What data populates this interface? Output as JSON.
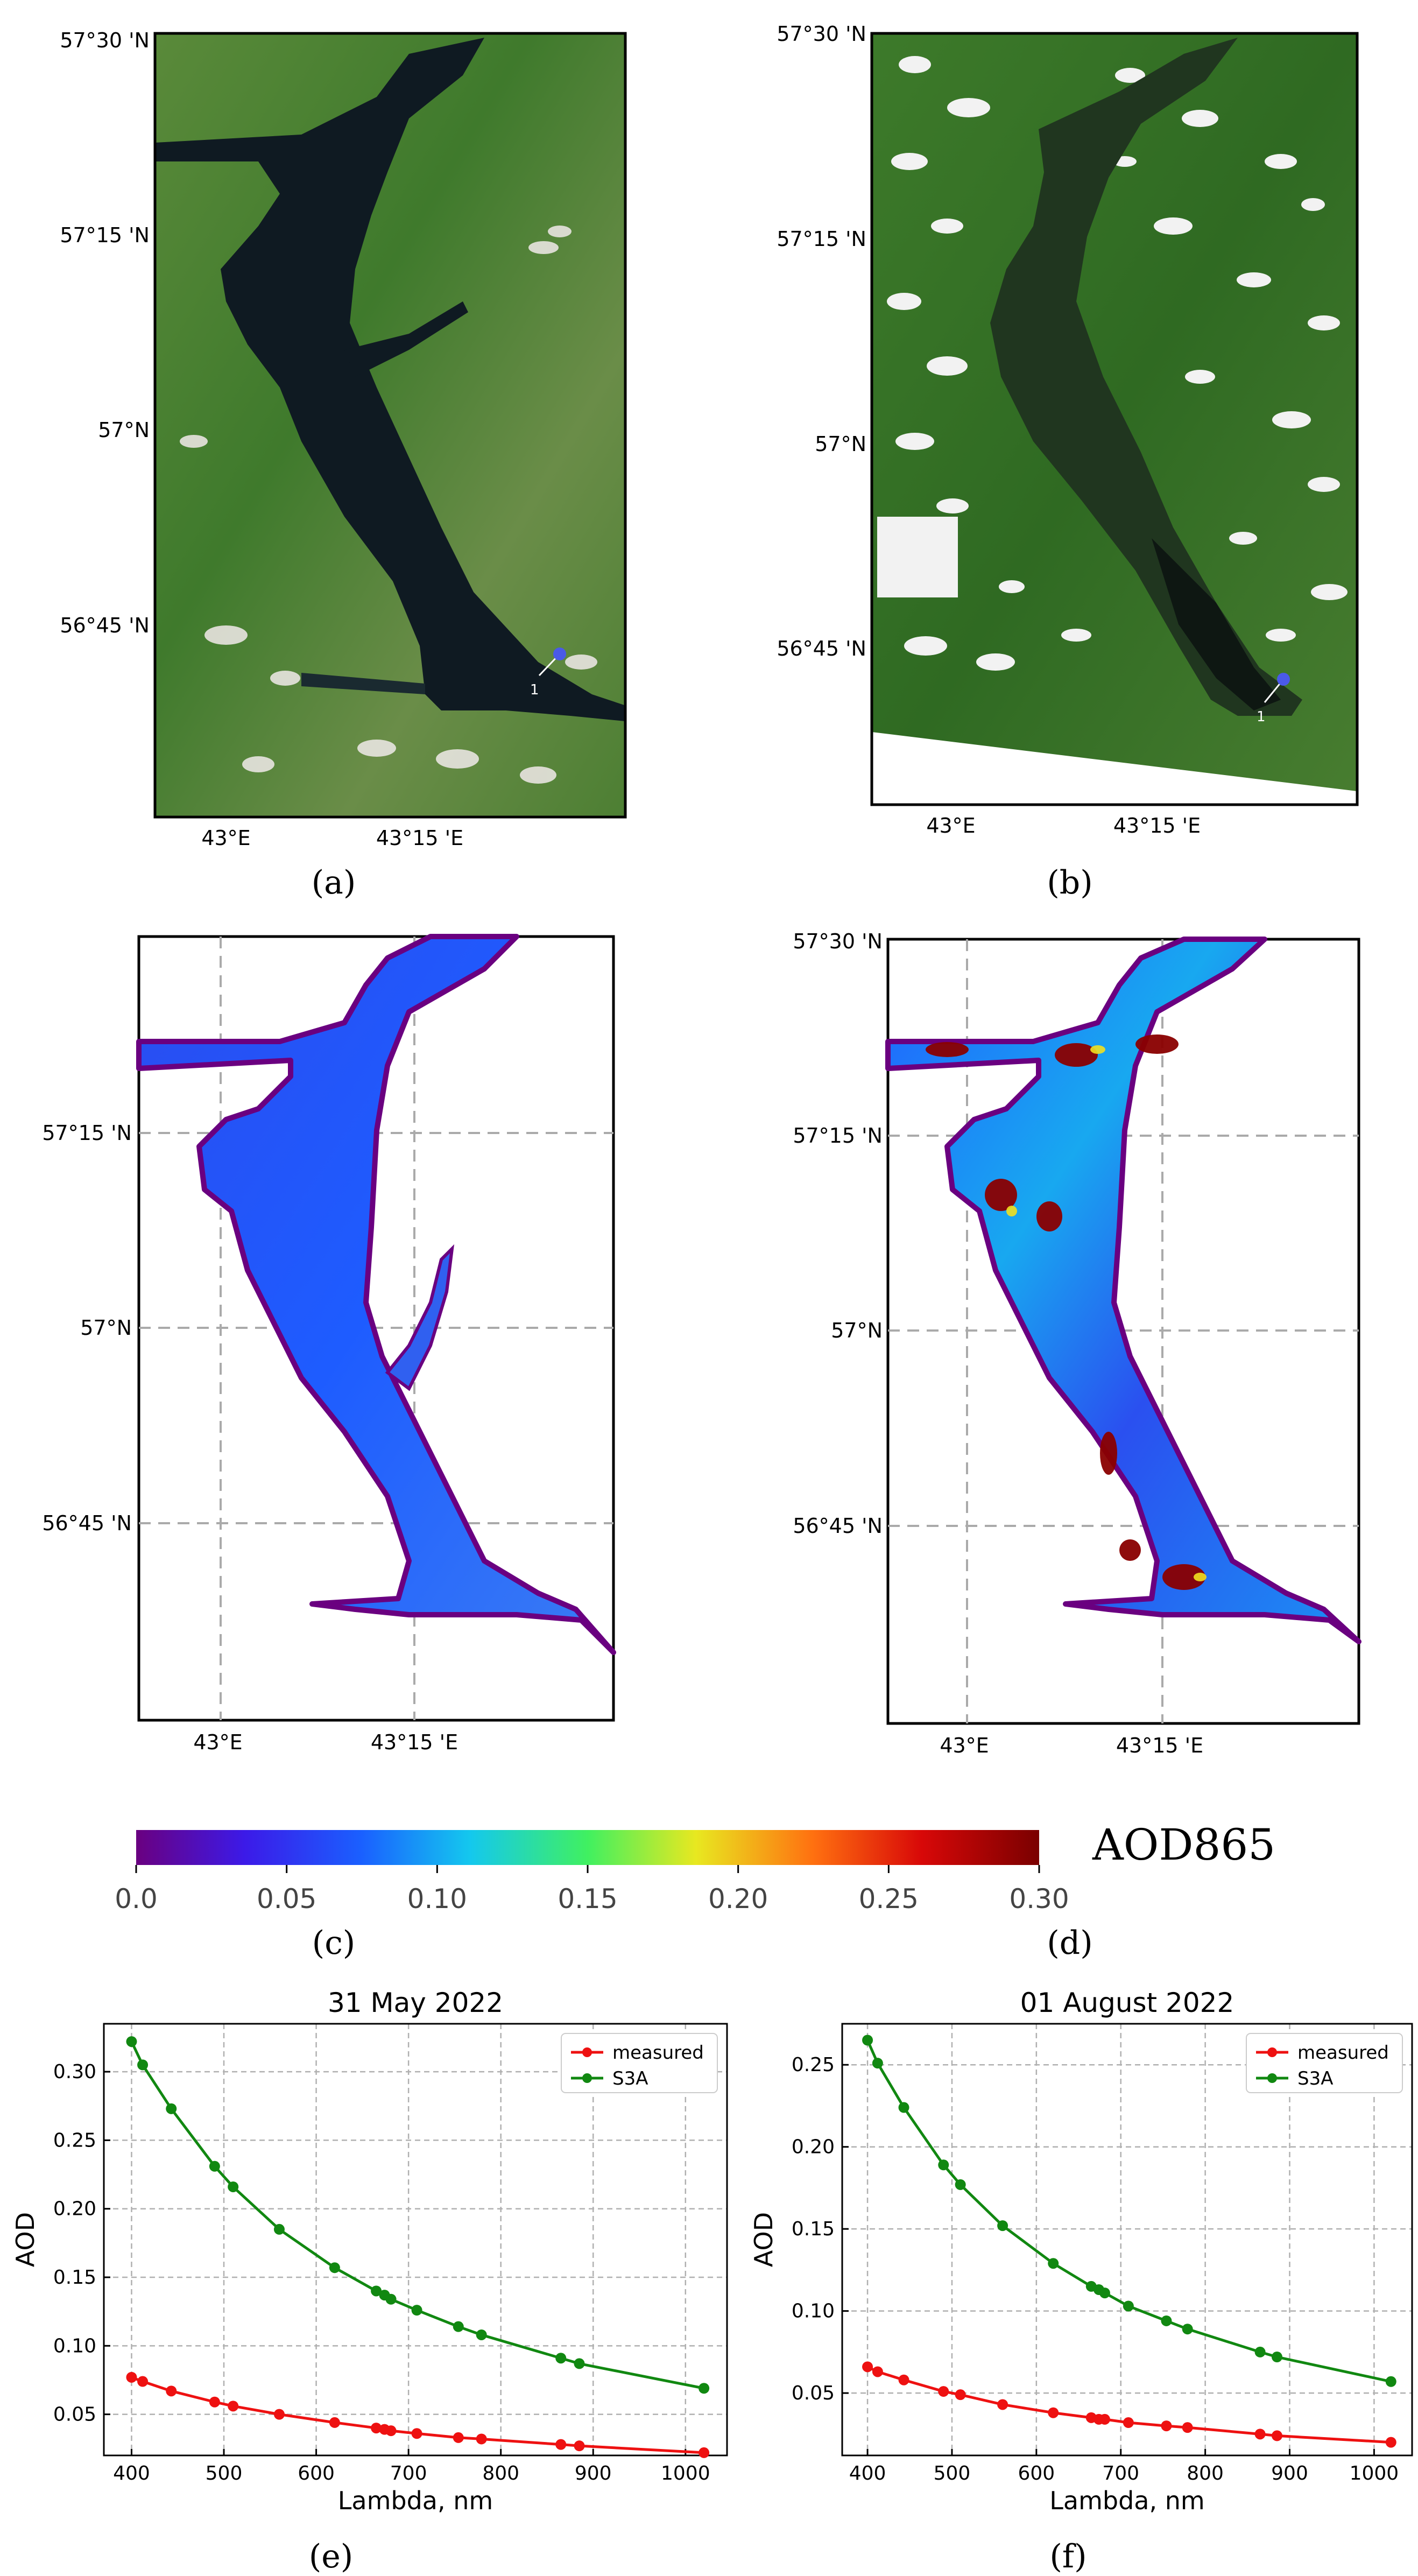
{
  "panels": {
    "a": {
      "label": "(a)",
      "lat_ticks": [
        "57°30 'N",
        "57°15 'N",
        "57°N",
        "56°45 'N"
      ],
      "lon_ticks": [
        "43°E",
        "43°15 'E"
      ],
      "point_label": "1",
      "marker_color": "#4a5ae8"
    },
    "b": {
      "label": "(b)",
      "lat_ticks": [
        "57°30 'N",
        "57°15 'N",
        "57°N",
        "56°45 'N"
      ],
      "lon_ticks": [
        "43°E",
        "43°15 'E"
      ],
      "point_label": "1",
      "marker_color": "#4a5ae8"
    },
    "c": {
      "label": "(c)",
      "lat_ticks": [
        "57°15 'N",
        "57°N",
        "56°45 'N"
      ],
      "lon_ticks": [
        "43°E",
        "43°15 'E"
      ]
    },
    "d": {
      "label": "(d)",
      "lat_ticks": [
        "57°30 'N",
        "57°15 'N",
        "57°N",
        "56°45 'N"
      ],
      "lon_ticks": [
        "43°E",
        "43°15 'E"
      ]
    },
    "e": {
      "label": "(e)"
    },
    "f": {
      "label": "(f)"
    }
  },
  "colorbar": {
    "title": "AOD865",
    "ticks": [
      "0.0",
      "0.05",
      "0.10",
      "0.15",
      "0.20",
      "0.25",
      "0.30"
    ],
    "range": [
      0.0,
      0.3
    ],
    "colormap": [
      "#6a0080",
      "#3c1ae8",
      "#1a60ff",
      "#14c8ee",
      "#40f060",
      "#e8e820",
      "#ff7010",
      "#d80808",
      "#7a0000"
    ]
  },
  "chart_data": [
    {
      "type": "line",
      "title": "31 May 2022",
      "xlabel": "Lambda, nm",
      "ylabel": "AOD",
      "xlim": [
        370,
        1045
      ],
      "ylim": [
        0.02,
        0.335
      ],
      "xticks": [
        "400",
        "500",
        "600",
        "700",
        "800",
        "900",
        "1000"
      ],
      "yticks": [
        "0.05",
        "0.10",
        "0.15",
        "0.20",
        "0.25",
        "0.30"
      ],
      "grid": true,
      "legend": "top-right",
      "x": [
        400,
        412,
        443,
        490,
        510,
        560,
        620,
        665,
        674,
        681,
        709,
        754,
        779,
        865,
        885,
        1020
      ],
      "series": [
        {
          "name": "measured",
          "color": "#ee1111",
          "values": [
            0.077,
            0.074,
            0.067,
            0.059,
            0.056,
            0.05,
            0.044,
            0.04,
            0.039,
            0.038,
            0.036,
            0.033,
            0.032,
            0.028,
            0.027,
            0.022
          ]
        },
        {
          "name": "S3A",
          "color": "#118811",
          "values": [
            0.322,
            0.305,
            0.273,
            0.231,
            0.216,
            0.185,
            0.157,
            0.14,
            0.137,
            0.134,
            0.126,
            0.114,
            0.108,
            0.091,
            0.087,
            0.069
          ]
        }
      ]
    },
    {
      "type": "line",
      "title": "01 August 2022",
      "xlabel": "Lambda, nm",
      "ylabel": "AOD",
      "xlim": [
        370,
        1045
      ],
      "ylim": [
        0.012,
        0.275
      ],
      "xticks": [
        "400",
        "500",
        "600",
        "700",
        "800",
        "900",
        "1000"
      ],
      "yticks": [
        "0.05",
        "0.10",
        "0.15",
        "0.20",
        "0.25"
      ],
      "grid": true,
      "legend": "top-right",
      "x": [
        400,
        412,
        443,
        490,
        510,
        560,
        620,
        665,
        674,
        681,
        709,
        754,
        779,
        865,
        885,
        1020
      ],
      "series": [
        {
          "name": "measured",
          "color": "#ee1111",
          "values": [
            0.066,
            0.063,
            0.058,
            0.051,
            0.049,
            0.043,
            0.038,
            0.035,
            0.034,
            0.034,
            0.032,
            0.03,
            0.029,
            0.025,
            0.024,
            0.02
          ]
        },
        {
          "name": "S3A",
          "color": "#118811",
          "values": [
            0.265,
            0.251,
            0.224,
            0.189,
            0.177,
            0.152,
            0.129,
            0.115,
            0.113,
            0.111,
            0.103,
            0.094,
            0.089,
            0.075,
            0.072,
            0.057
          ]
        }
      ]
    }
  ]
}
